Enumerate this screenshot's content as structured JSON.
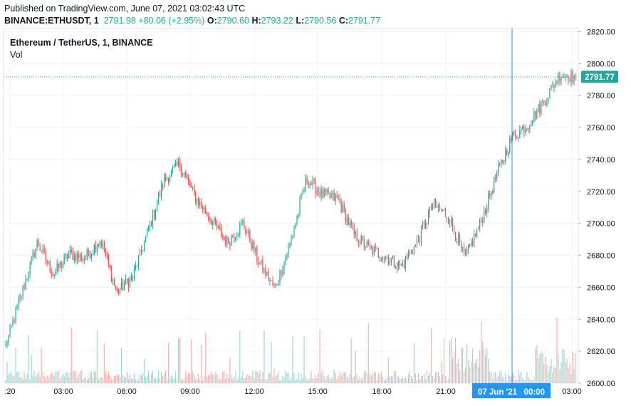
{
  "header": {
    "published": "Published on TradingView.com, June 07, 2021 03:02:43 UTC",
    "symbol_line": "BINANCE:ETHUSDT, 1",
    "last": "2791.98",
    "change": "+80.06 (+2.95%)",
    "o_label": "O:",
    "o_value": "2790.60",
    "h_label": "H:",
    "h_value": "2793.22",
    "l_label": "L:",
    "l_value": "2790.56",
    "c_label": "C:",
    "c_value": "2791.77"
  },
  "legend": {
    "title": "Ethereum / TetherUS, 1, BINANCE",
    "volume": "Vol"
  },
  "price_label": "2791.77",
  "crosshair_label": "07 Jun '21   00:00",
  "colors": {
    "up": "#26a69a",
    "down": "#ef5350",
    "crosshair": "#2196f3",
    "price_line": "#26a69a"
  },
  "chart_data": {
    "type": "line",
    "subtype": "candlestick_with_volume",
    "y_ticks": [
      "2820.00",
      "2800.00",
      "2780.00",
      "2760.00",
      "2740.00",
      "2720.00",
      "2700.00",
      "2680.00",
      "2660.00",
      "2640.00",
      "2620.00",
      "2600.00"
    ],
    "x_ticks": [
      ":20",
      "03:00",
      "06:00",
      "09:00",
      "12:00",
      "15:00",
      "18:00",
      "21:00",
      "03:00"
    ],
    "ylim": [
      2600,
      2822
    ],
    "x": [
      "00:20",
      "01:00",
      "02:00",
      "03:00",
      "04:00",
      "05:00",
      "06:00",
      "06:30",
      "07:00",
      "08:00",
      "08:30",
      "09:00",
      "10:00",
      "11:00",
      "12:00",
      "13:00",
      "13:30",
      "14:00",
      "15:00",
      "15:30",
      "16:00",
      "17:00",
      "18:00",
      "19:00",
      "20:00",
      "20:30",
      "21:00",
      "22:00",
      "22:30",
      "23:00",
      "00:00",
      "00:30",
      "01:00",
      "01:30",
      "02:00",
      "02:30",
      "03:00"
    ],
    "series": [
      {
        "values": [
          2623,
          2656,
          2688,
          2668,
          2681,
          2678,
          2690,
          2657,
          2666,
          2695,
          2727,
          2737,
          2716,
          2702,
          2688,
          2700,
          2676,
          2659,
          2688,
          2728,
          2718,
          2715,
          2693,
          2684,
          2679,
          2673,
          2688,
          2712,
          2704,
          2678,
          2700,
          2730,
          2754,
          2762,
          2776,
          2793,
          2791.77
        ]
      }
    ],
    "grid": true,
    "last_value": 2791.77
  }
}
